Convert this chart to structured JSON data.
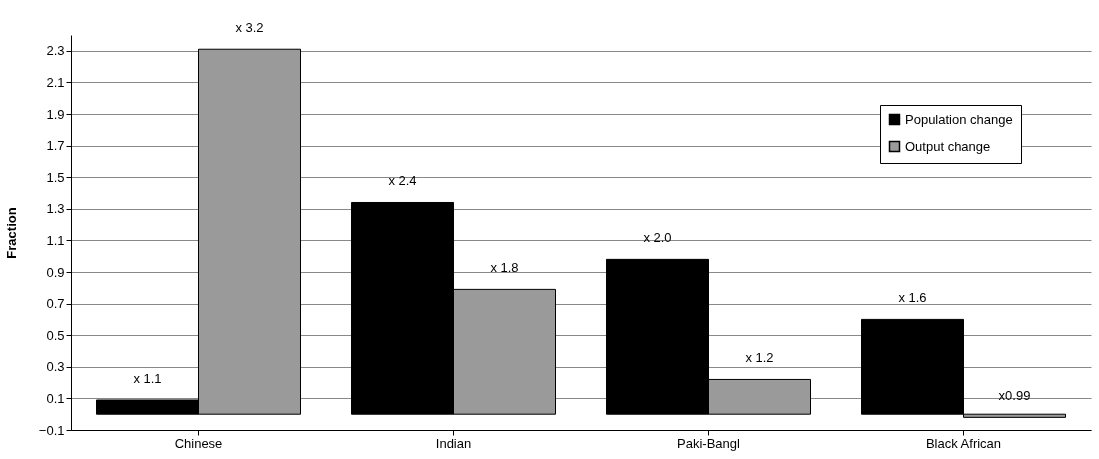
{
  "chart_data": {
    "type": "bar",
    "ylabel": "Fraction",
    "categories": [
      "Chinese",
      "Indian",
      "Paki-Bangl",
      "Black African"
    ],
    "series": [
      {
        "name": "Population change",
        "color": "#000000",
        "values": [
          0.09,
          1.34,
          0.98,
          0.6
        ],
        "value_labels": [
          "x 1.1",
          "x 2.4",
          "x 2.0",
          "x 1.6"
        ]
      },
      {
        "name": "Output change",
        "color": "#9a9a9a",
        "values": [
          2.31,
          0.79,
          0.22,
          -0.02
        ],
        "value_labels": [
          "x 3.2",
          "x 1.8",
          "x 1.2",
          "x0.99"
        ]
      }
    ],
    "ylim": [
      -0.1,
      2.4
    ],
    "yticks": [
      -0.1,
      0.1,
      0.3,
      0.5,
      0.7,
      0.9,
      1.1,
      1.3,
      1.5,
      1.7,
      1.9,
      2.1,
      2.3
    ],
    "grid": "y",
    "legend": "top right"
  }
}
